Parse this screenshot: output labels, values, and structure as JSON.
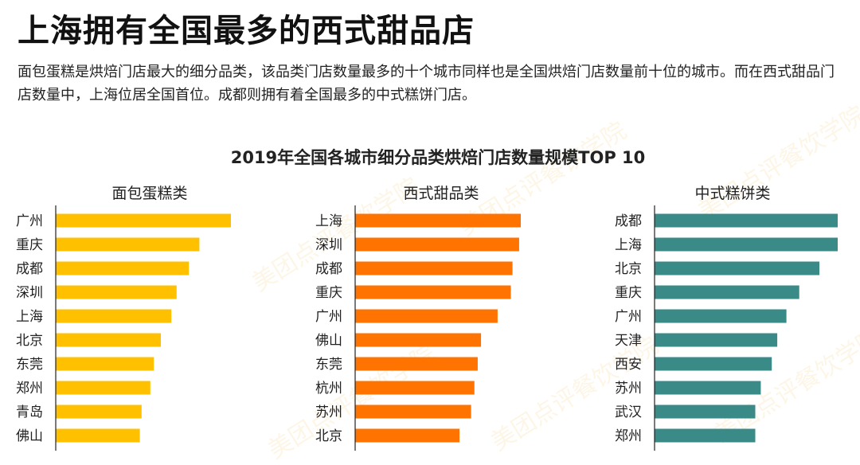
{
  "page": {
    "title": "上海拥有全国最多的西式甜品店",
    "intro": "面包蛋糕是烘焙门店最大的细分品类，该品类门店数量最多的十个城市同样也是全国烘焙门店数量前十位的城市。而在西式甜品门店数量中，上海位居全国首位。成都则拥有着全国最多的中式糕饼门店。",
    "watermark": "美团点评餐饮学院"
  },
  "chart_data": {
    "type": "bar",
    "orientation": "horizontal",
    "title": "2019年全国各城市细分品类烘焙门店数量规模TOP 10",
    "panels": [
      {
        "title": "面包蛋糕类",
        "color": "#FFC000",
        "categories": [
          "广州",
          "重庆",
          "成都",
          "深圳",
          "上海",
          "北京",
          "东莞",
          "郑州",
          "青岛",
          "佛山"
        ],
        "values": [
          100,
          82,
          76,
          69,
          66,
          60,
          56,
          54,
          49,
          48
        ]
      },
      {
        "title": "西式甜品类",
        "color": "#FF7300",
        "categories": [
          "上海",
          "深圳",
          "成都",
          "重庆",
          "广州",
          "佛山",
          "东莞",
          "杭州",
          "苏州",
          "北京"
        ],
        "values": [
          100,
          99,
          95,
          94,
          86,
          76,
          74,
          72,
          70,
          63
        ]
      },
      {
        "title": "中式糕饼类",
        "color": "#3A8A88",
        "categories": [
          "成都",
          "上海",
          "北京",
          "重庆",
          "广州",
          "天津",
          "西安",
          "苏州",
          "武汉",
          "郑州"
        ],
        "values": [
          100,
          100,
          90,
          79,
          72,
          67,
          64,
          58,
          55,
          55
        ]
      }
    ]
  }
}
